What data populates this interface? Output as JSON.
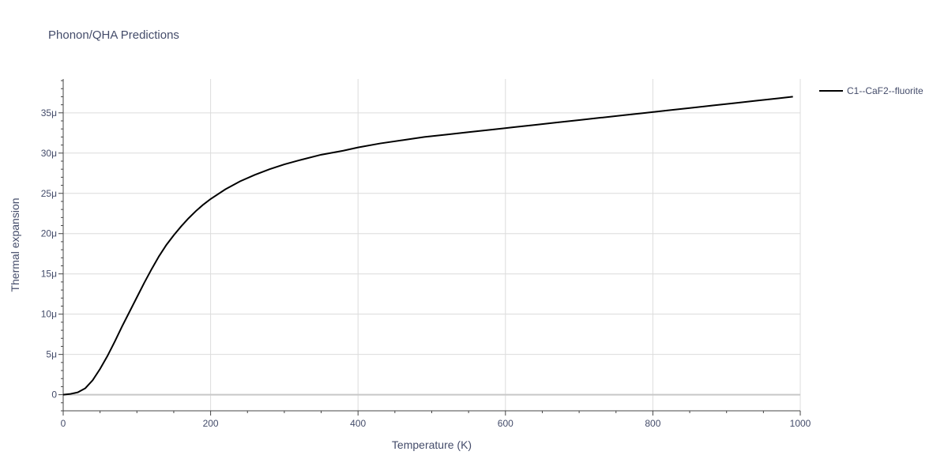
{
  "chart_data": {
    "type": "line",
    "title": "Phonon/QHA Predictions",
    "xlabel": "Temperature (K)",
    "ylabel": "Thermal expansion",
    "xlim": [
      0,
      1000
    ],
    "ylim": [
      -2e-06,
      3.92e-05
    ],
    "x_ticks": [
      0,
      200,
      400,
      600,
      800,
      1000
    ],
    "x_tick_labels": [
      "0",
      "200",
      "400",
      "600",
      "800",
      "1000"
    ],
    "y_ticks": [
      0,
      5e-06,
      1e-05,
      1.5e-05,
      2e-05,
      2.5e-05,
      3e-05,
      3.5e-05
    ],
    "y_tick_labels": [
      "0",
      "5μ",
      "10μ",
      "15μ",
      "20μ",
      "25μ",
      "30μ",
      "35μ"
    ],
    "grid": true,
    "legend_position": "top-right",
    "series": [
      {
        "name": "C1--CaF2--fluorite",
        "color": "#000000",
        "x": [
          0,
          10,
          20,
          30,
          40,
          50,
          60,
          70,
          80,
          90,
          100,
          110,
          120,
          130,
          140,
          150,
          160,
          170,
          180,
          190,
          200,
          220,
          240,
          260,
          280,
          300,
          320,
          350,
          380,
          400,
          430,
          460,
          490,
          520,
          550,
          580,
          610,
          640,
          670,
          700,
          730,
          760,
          790,
          820,
          850,
          880,
          910,
          940,
          970,
          990
        ],
        "y": [
          0,
          1e-07,
          3e-07,
          8e-07,
          1.8e-06,
          3.2e-06,
          4.8e-06,
          6.6e-06,
          8.5e-06,
          1.03e-05,
          1.21e-05,
          1.39e-05,
          1.56e-05,
          1.72e-05,
          1.86e-05,
          1.98e-05,
          2.09e-05,
          2.19e-05,
          2.28e-05,
          2.36e-05,
          2.43e-05,
          2.55e-05,
          2.65e-05,
          2.73e-05,
          2.8e-05,
          2.86e-05,
          2.91e-05,
          2.98e-05,
          3.03e-05,
          3.07e-05,
          3.12e-05,
          3.16e-05,
          3.2e-05,
          3.23e-05,
          3.26e-05,
          3.29e-05,
          3.32e-05,
          3.35e-05,
          3.38e-05,
          3.41e-05,
          3.44e-05,
          3.47e-05,
          3.5e-05,
          3.53e-05,
          3.56e-05,
          3.59e-05,
          3.62e-05,
          3.65e-05,
          3.68e-05,
          3.7e-05
        ]
      }
    ]
  }
}
